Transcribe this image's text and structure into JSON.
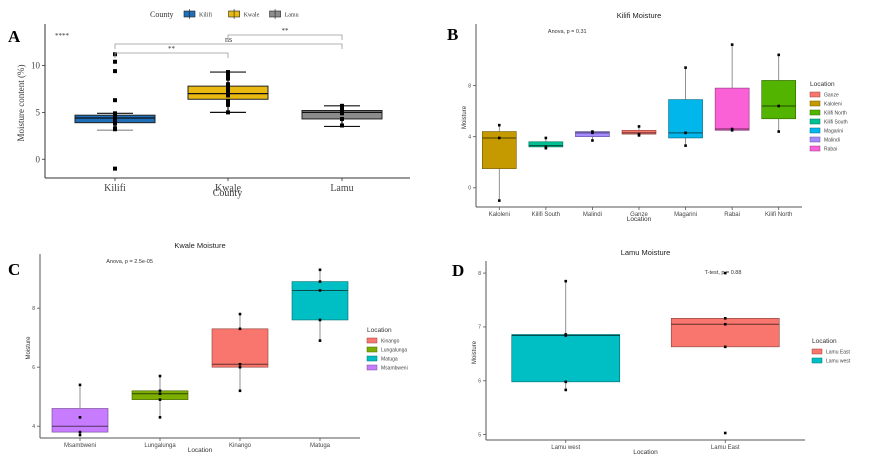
{
  "chart_data": [
    {
      "panel": "A",
      "type": "box",
      "title": "",
      "xlabel": "County",
      "ylabel": "Moisture content (%)",
      "ylim": [
        -2,
        14
      ],
      "yticks": [
        0,
        5,
        10
      ],
      "legend": {
        "title": "County",
        "position": "top",
        "entries": [
          {
            "label": "Kilifi",
            "color": "#1F6FB8"
          },
          {
            "label": "Kwale",
            "color": "#E9B911"
          },
          {
            "label": "Lamu",
            "color": "#8C8C8C"
          }
        ]
      },
      "global_annotation": "****",
      "categories": [
        "Kilifi",
        "Kwale",
        "Lamu"
      ],
      "boxes": [
        {
          "label": "Kilifi",
          "color": "#1F6FB8",
          "lower_whisker": 3.1,
          "q1": 3.9,
          "median": 4.4,
          "q3": 4.7,
          "upper_whisker": 4.9,
          "points": [
            11.2,
            10.4,
            9.4,
            6.3,
            4.9,
            4.6,
            4.4,
            4.2,
            4.0,
            3.8,
            3.3,
            3.2,
            -1.0
          ]
        },
        {
          "label": "Kwale",
          "color": "#E9B911",
          "lower_whisker": 5.0,
          "q1": 6.4,
          "median": 7.0,
          "q3": 7.8,
          "upper_whisker": 9.3,
          "points": [
            9.3,
            9.0,
            8.6,
            8.0,
            7.7,
            7.4,
            7.2,
            7.0,
            6.8,
            6.2,
            6.0,
            5.8,
            5.0
          ]
        },
        {
          "label": "Lamu",
          "color": "#8C8C8C",
          "lower_whisker": 3.5,
          "q1": 4.3,
          "median": 5.0,
          "q3": 5.2,
          "upper_whisker": 5.7,
          "points": [
            5.7,
            5.3,
            5.1,
            4.9,
            4.3,
            3.6
          ]
        }
      ],
      "comparisons": [
        {
          "from": "Kilifi",
          "to": "Kwale",
          "label": "**",
          "level": 1
        },
        {
          "from": "Kilifi",
          "to": "Lamu",
          "label": "ns",
          "level": 2
        },
        {
          "from": "Kwale",
          "to": "Lamu",
          "label": "**",
          "level": 3
        }
      ]
    },
    {
      "panel": "B",
      "type": "box",
      "title": "Kilifi Moisture",
      "xlabel": "Location",
      "ylabel": "Moisture",
      "ylim": [
        -1.5,
        12.5
      ],
      "yticks": [
        0,
        4,
        8
      ],
      "annotation": "Anova, p = 0.31",
      "legend": {
        "title": "Location",
        "position": "right",
        "entries": [
          {
            "label": "Ganze",
            "color": "#F8766D"
          },
          {
            "label": "Kaloleni",
            "color": "#C49A00"
          },
          {
            "label": "Kilifi North",
            "color": "#53B400"
          },
          {
            "label": "Kilifi South",
            "color": "#00C094"
          },
          {
            "label": "Magarini",
            "color": "#00B6EB"
          },
          {
            "label": "Malindi",
            "color": "#A58AFF"
          },
          {
            "label": "Rabai",
            "color": "#FB61D7"
          }
        ]
      },
      "categories": [
        "Kaloleni",
        "Kilifi South",
        "Malindi",
        "Ganze",
        "Magarini",
        "Rabai",
        "Kilifi North"
      ],
      "boxes": [
        {
          "label": "Kaloleni",
          "color": "#C49A00",
          "lower_whisker": -1.0,
          "q1": 1.5,
          "median": 3.9,
          "q3": 4.4,
          "upper_whisker": 4.9,
          "points": [
            4.9,
            3.9,
            -1.0
          ]
        },
        {
          "label": "Kilifi South",
          "color": "#00C094",
          "lower_whisker": 3.1,
          "q1": 3.2,
          "median": 3.3,
          "q3": 3.6,
          "upper_whisker": 3.9,
          "points": [
            3.9,
            3.2,
            3.1
          ]
        },
        {
          "label": "Malindi",
          "color": "#A58AFF",
          "lower_whisker": 3.7,
          "q1": 4.0,
          "median": 4.3,
          "q3": 4.4,
          "upper_whisker": 4.4,
          "points": [
            4.4,
            4.3,
            3.7
          ]
        },
        {
          "label": "Ganze",
          "color": "#F8766D",
          "lower_whisker": 4.1,
          "q1": 4.2,
          "median": 4.3,
          "q3": 4.5,
          "upper_whisker": 4.8,
          "points": [
            4.8,
            4.2,
            4.1
          ]
        },
        {
          "label": "Magarini",
          "color": "#00B6EB",
          "lower_whisker": 3.3,
          "q1": 3.9,
          "median": 4.3,
          "q3": 6.9,
          "upper_whisker": 9.4,
          "points": [
            9.4,
            4.3,
            3.3
          ]
        },
        {
          "label": "Rabai",
          "color": "#FB61D7",
          "lower_whisker": 4.5,
          "q1": 4.5,
          "median": 4.6,
          "q3": 7.8,
          "upper_whisker": 11.2,
          "points": [
            11.2,
            4.6,
            4.5
          ]
        },
        {
          "label": "Kilifi North",
          "color": "#53B400",
          "lower_whisker": 4.4,
          "q1": 5.4,
          "median": 6.4,
          "q3": 8.4,
          "upper_whisker": 10.4,
          "points": [
            10.4,
            6.4,
            4.4
          ]
        }
      ]
    },
    {
      "panel": "C",
      "type": "box",
      "title": "Kwale Moisture",
      "xlabel": "Location",
      "ylabel": "Moisture",
      "ylim": [
        3.6,
        9.7
      ],
      "yticks": [
        4,
        6,
        8
      ],
      "annotation": "Anova, p = 2.5e-05",
      "legend": {
        "title": "Location",
        "position": "right",
        "entries": [
          {
            "label": "Kinango",
            "color": "#F8766D"
          },
          {
            "label": "Lungalunga",
            "color": "#7CAE00"
          },
          {
            "label": "Matuga",
            "color": "#00BFC4"
          },
          {
            "label": "Msambweni",
            "color": "#C77CFF"
          }
        ]
      },
      "categories": [
        "Msambweni",
        "Lungalunga",
        "Kinango",
        "Matuga"
      ],
      "boxes": [
        {
          "label": "Msambweni",
          "color": "#C77CFF",
          "lower_whisker": 3.7,
          "q1": 3.8,
          "median": 4.0,
          "q3": 4.6,
          "upper_whisker": 5.4,
          "points": [
            5.4,
            4.3,
            3.8,
            3.7
          ]
        },
        {
          "label": "Lungalunga",
          "color": "#7CAE00",
          "lower_whisker": 4.3,
          "q1": 4.9,
          "median": 5.1,
          "q3": 5.2,
          "upper_whisker": 5.7,
          "points": [
            5.7,
            5.2,
            5.1,
            4.9,
            4.3
          ]
        },
        {
          "label": "Kinango",
          "color": "#F8766D",
          "lower_whisker": 5.2,
          "q1": 6.0,
          "median": 6.1,
          "q3": 7.3,
          "upper_whisker": 7.8,
          "points": [
            7.8,
            7.3,
            6.1,
            6.0,
            5.2
          ]
        },
        {
          "label": "Matuga",
          "color": "#00BFC4",
          "lower_whisker": 6.9,
          "q1": 7.6,
          "median": 8.6,
          "q3": 8.9,
          "upper_whisker": 9.3,
          "points": [
            9.3,
            8.9,
            8.6,
            7.6,
            6.9
          ]
        }
      ]
    },
    {
      "panel": "D",
      "type": "box",
      "title": "Lamu Moisture",
      "xlabel": "Location",
      "ylabel": "Moisture",
      "ylim": [
        4.9,
        8.15
      ],
      "yticks": [
        5,
        6,
        7,
        8
      ],
      "annotation": "T-test, p = 0.88",
      "legend": {
        "title": "Location",
        "position": "right",
        "entries": [
          {
            "label": "Lamu East",
            "color": "#F8766D"
          },
          {
            "label": "Lamu west",
            "color": "#00BFC4"
          }
        ]
      },
      "categories": [
        "Lamu west",
        "Lamu East"
      ],
      "boxes": [
        {
          "label": "Lamu west",
          "color": "#00BFC4",
          "lower_whisker": 5.83,
          "q1": 5.98,
          "median": 6.84,
          "q3": 6.86,
          "upper_whisker": 7.85,
          "points": [
            7.85,
            6.86,
            6.84,
            5.98,
            5.83
          ]
        },
        {
          "label": "Lamu East",
          "color": "#F8766D",
          "lower_whisker": 6.63,
          "q1": 6.63,
          "median": 7.05,
          "q3": 7.16,
          "upper_whisker": 7.16,
          "points": [
            8.0,
            7.16,
            7.05,
            6.63,
            5.03
          ]
        }
      ]
    }
  ]
}
